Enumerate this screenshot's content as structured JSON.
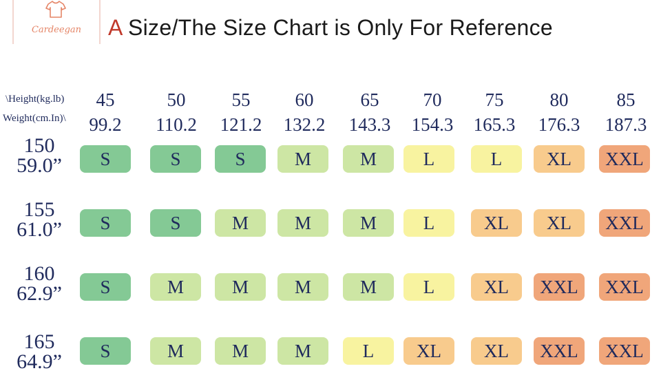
{
  "brand": {
    "name": "Cardeegan",
    "logo_icon": "t-shirt-icon"
  },
  "header": {
    "accent": "A",
    "title": "Size/The Size Chart is Only For Reference"
  },
  "table": {
    "corner_top": "\\Height(kg.lb)",
    "corner_bottom": "Weight(cm.In)\\",
    "columns": [
      {
        "kg": "45",
        "lb": "99.2"
      },
      {
        "kg": "50",
        "lb": "110.2"
      },
      {
        "kg": "55",
        "lb": "121.2"
      },
      {
        "kg": "60",
        "lb": "132.2"
      },
      {
        "kg": "65",
        "lb": "143.3"
      },
      {
        "kg": "70",
        "lb": "154.3"
      },
      {
        "kg": "75",
        "lb": "165.3"
      },
      {
        "kg": "80",
        "lb": "176.3"
      },
      {
        "kg": "85",
        "lb": "187.3"
      }
    ],
    "rows": [
      {
        "cm": "150",
        "in": "59.0”",
        "sizes": [
          "S",
          "S",
          "S",
          "M",
          "M",
          "L",
          "L",
          "XL",
          "XXL"
        ]
      },
      {
        "cm": "155",
        "in": "61.0”",
        "sizes": [
          "S",
          "S",
          "M",
          "M",
          "M",
          "L",
          "XL",
          "XL",
          "XXL"
        ]
      },
      {
        "cm": "160",
        "in": "62.9”",
        "sizes": [
          "S",
          "M",
          "M",
          "M",
          "M",
          "L",
          "XL",
          "XXL",
          "XXL"
        ]
      },
      {
        "cm": "165",
        "in": "64.9”",
        "sizes": [
          "S",
          "M",
          "M",
          "M",
          "L",
          "XL",
          "XL",
          "XXL",
          "XXL"
        ]
      }
    ]
  },
  "colors": {
    "S": "#84c995",
    "M": "#cde6a4",
    "L": "#f8f3a0",
    "XL": "#f8cb8d",
    "XXL": "#f0a67a",
    "text": "#1f2a5c",
    "accent": "#c0392b"
  }
}
